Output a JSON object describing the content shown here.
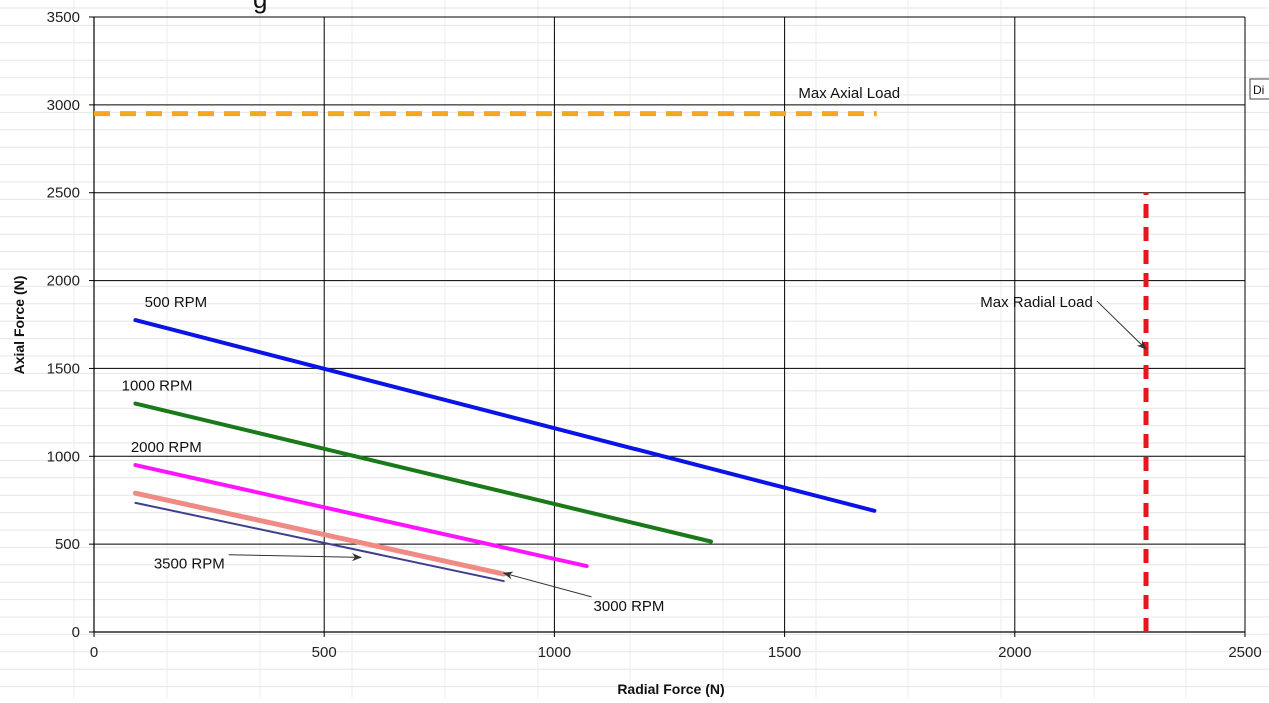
{
  "chart_data": {
    "type": "line",
    "title": "",
    "title_fragment": "g",
    "xlabel": "Radial Force (N)",
    "ylabel": "Axial Force (N)",
    "xlim": [
      0,
      2500
    ],
    "ylim": [
      0,
      3500
    ],
    "x_ticks": [
      0,
      500,
      1000,
      1500,
      2000,
      2500
    ],
    "y_ticks": [
      0,
      500,
      1000,
      1500,
      2000,
      2500,
      3000,
      3500
    ],
    "grid": true,
    "legend": "none",
    "series": [
      {
        "label": "500 RPM",
        "color": "#0a14e6",
        "style": "solid",
        "points": [
          [
            90,
            1775
          ],
          [
            1695,
            690
          ]
        ]
      },
      {
        "label": "1000 RPM",
        "color": "#1a7a1a",
        "style": "solid",
        "points": [
          [
            90,
            1300
          ],
          [
            1340,
            515
          ]
        ]
      },
      {
        "label": "2000 RPM",
        "color": "#ff14ff",
        "style": "solid",
        "points": [
          [
            90,
            950
          ],
          [
            1070,
            375
          ]
        ]
      },
      {
        "label": "3000 RPM",
        "color": "#f08a84",
        "style": "solid",
        "points": [
          [
            90,
            790
          ],
          [
            890,
            330
          ]
        ]
      },
      {
        "label": "3500 RPM",
        "color": "#3f3f8f",
        "style": "solid",
        "points": [
          [
            90,
            735
          ],
          [
            890,
            290
          ]
        ]
      }
    ],
    "limits": [
      {
        "label": "Max Axial Load",
        "color": "#f5a623",
        "style": "dashed",
        "points": [
          [
            0,
            2950
          ],
          [
            1700,
            2950
          ]
        ]
      },
      {
        "label": "Max Radial Load",
        "color": "#e8141e",
        "style": "dashed",
        "points": [
          [
            2285,
            0
          ],
          [
            2285,
            2500
          ]
        ]
      }
    ],
    "annotations": [
      {
        "text": "Max Axial Load",
        "at": [
          1530,
          3040
        ]
      },
      {
        "text": "500 RPM",
        "at": [
          110,
          1850
        ]
      },
      {
        "text": "1000 RPM",
        "at": [
          60,
          1375
        ]
      },
      {
        "text": "2000 RPM",
        "at": [
          80,
          1025
        ]
      },
      {
        "text": "Max Radial Load",
        "at": [
          1925,
          1850
        ],
        "arrow_to": [
          2285,
          1610
        ]
      },
      {
        "text": "3500 RPM",
        "at": [
          130,
          360
        ],
        "arrow_to": [
          580,
          425
        ]
      },
      {
        "text": "3000 RPM",
        "at": [
          1085,
          120
        ],
        "arrow_to": [
          890,
          335
        ]
      }
    ],
    "edge_label": "Di"
  }
}
